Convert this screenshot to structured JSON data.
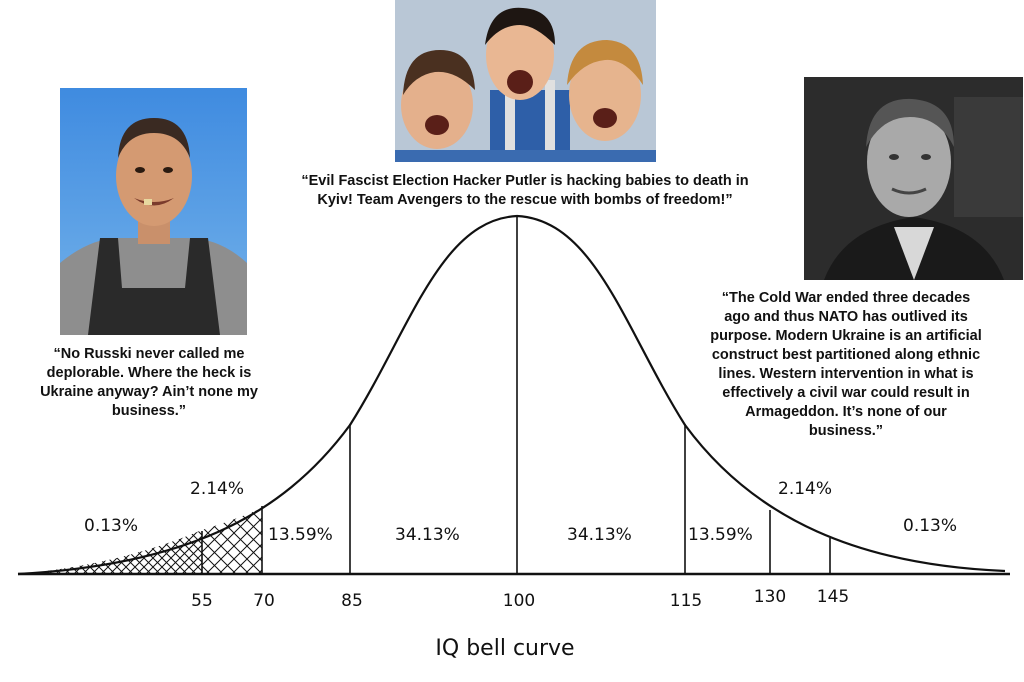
{
  "quotes": {
    "left": [
      "“No Russki never called me",
      "deplorable. Where the heck is",
      "Ukraine anyway? Ain’t none my",
      "business.”"
    ],
    "center": [
      "“Evil Fascist Election Hacker Putler is hacking babies to death in",
      "Kyiv! Team Avengers to the rescue with bombs of freedom!”"
    ],
    "right": [
      "“The Cold War ended three decades",
      "ago and thus NATO has outlived its",
      "purpose. Modern Ukraine is an artificial",
      "construct best partitioned along ethnic",
      "lines. Western intervention in what is",
      "effectively a civil war could result in",
      "Armageddon. It’s none of our",
      "business.”"
    ]
  },
  "photos": {
    "left": "photo-smiling-man-overalls",
    "center": "photo-three-excited-men",
    "right": "photo-black-white-portrait"
  },
  "percentages": {
    "far_left": "0.13%",
    "left_2": "2.14%",
    "left_13": "13.59%",
    "left_34": "34.13%",
    "right_34": "34.13%",
    "right_13": "13.59%",
    "right_2": "2.14%",
    "far_right": "0.13%"
  },
  "ticks": [
    "55",
    "70",
    "85",
    "100",
    "115",
    "130",
    "145"
  ],
  "caption": "IQ bell curve",
  "colors": {
    "ink": "#111111",
    "sky": "#3d86d8",
    "bw_bg": "#2c2c2c"
  }
}
